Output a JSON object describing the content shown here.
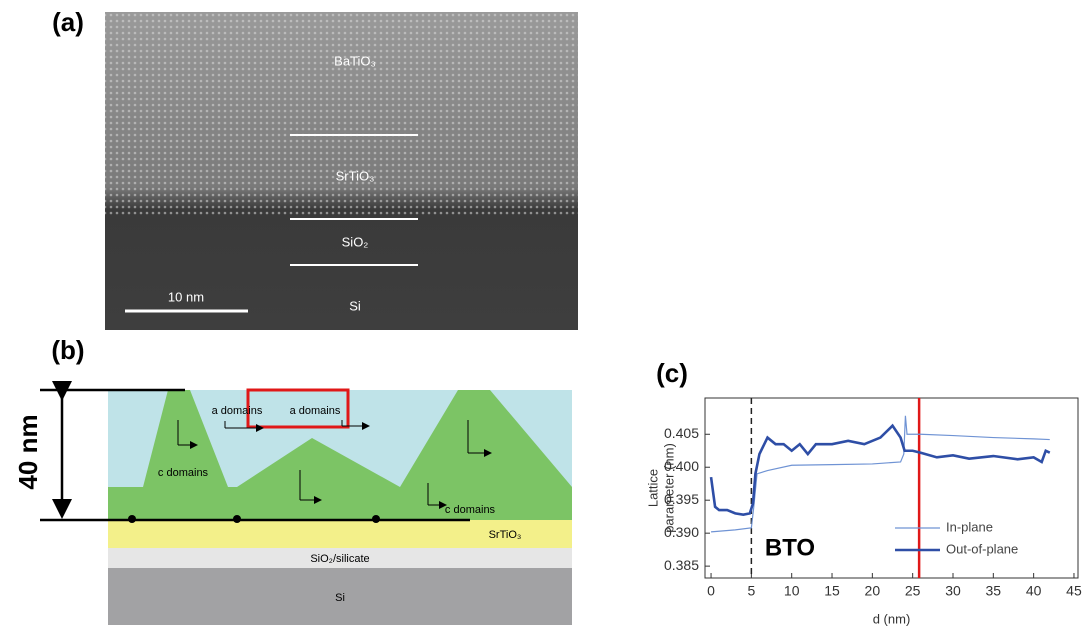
{
  "panel_a": {
    "label": "(a)",
    "layers": [
      "BaTiO₃",
      "SrTiO₃",
      "SiO₂",
      "Si"
    ],
    "scale_bar": "10 nm"
  },
  "panel_b": {
    "label": "(b)",
    "thickness": "40 nm",
    "a_domains": [
      "a domains",
      "a domains"
    ],
    "c_domains": [
      "c domains",
      "c domains"
    ],
    "layers": [
      "SrTiO₃",
      "SiO₂/silicate",
      "Si"
    ]
  },
  "chart_data": {
    "type": "line",
    "label": "(c)",
    "xlabel": "d (nm)",
    "ylabel": [
      "Lattice",
      "parameter (nm)"
    ],
    "xlim": [
      -0.75,
      45.5
    ],
    "ylim": [
      0.3832,
      0.4105
    ],
    "xticks": [
      0,
      5,
      10,
      15,
      20,
      25,
      30,
      35,
      40,
      45
    ],
    "yticks": [
      0.385,
      {
        "value": 0.39,
        "label": "0.390"
      },
      0.395,
      {
        "value": 0.4,
        "label": "0.400"
      },
      0.405
    ],
    "annotation": "BTO",
    "legend": "lower right",
    "series": [
      {
        "name": "In-plane",
        "color": "#6f93d4",
        "width": 1.2,
        "x": [
          0,
          3,
          5,
          5.3,
          5.7,
          7,
          10,
          15,
          20,
          23.5,
          23.9,
          24.1,
          24.3,
          26,
          30,
          35,
          40,
          42
        ],
        "values": [
          0.3902,
          0.3905,
          0.3908,
          0.394,
          0.399,
          0.3995,
          0.4003,
          0.4004,
          0.4005,
          0.4008,
          0.402,
          0.4078,
          0.405,
          0.405,
          0.4048,
          0.4045,
          0.4043,
          0.4042
        ]
      },
      {
        "name": "Out-of-plane",
        "color": "#2e4ea6",
        "width": 2.6,
        "x": [
          0,
          0.5,
          1,
          2,
          3,
          4,
          4.8,
          5.2,
          5.5,
          6,
          7,
          8,
          9,
          10,
          11,
          12,
          13,
          15,
          17,
          19,
          21,
          22.5,
          23.5,
          24,
          25,
          26,
          28,
          30,
          32,
          35,
          38,
          40,
          41,
          41.5,
          42
        ],
        "values": [
          0.3985,
          0.394,
          0.3935,
          0.3935,
          0.393,
          0.3928,
          0.393,
          0.3945,
          0.399,
          0.402,
          0.4045,
          0.4035,
          0.4035,
          0.4025,
          0.4035,
          0.402,
          0.4035,
          0.4035,
          0.404,
          0.4035,
          0.4045,
          0.4063,
          0.4045,
          0.4025,
          0.4025,
          0.4022,
          0.4015,
          0.4018,
          0.4013,
          0.4017,
          0.4012,
          0.4015,
          0.4008,
          0.4025,
          0.4022
        ]
      }
    ],
    "vlines": [
      {
        "x": 5,
        "color": "#222222",
        "dash": true
      },
      {
        "x": 25.8,
        "color": "#e01818",
        "dash": false
      }
    ]
  }
}
